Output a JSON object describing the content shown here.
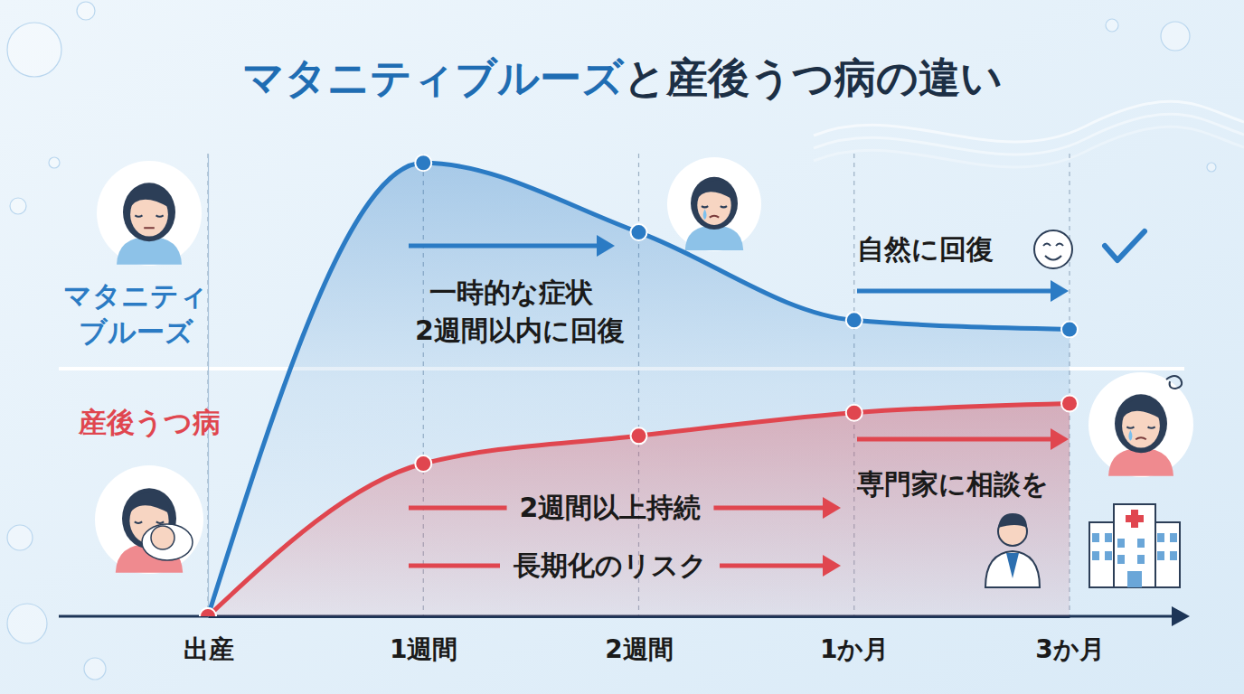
{
  "chart_data": {
    "type": "line",
    "title": "マタニティブルーズと産後うつ病の違い",
    "categories": [
      "出産",
      "1週間",
      "2週間",
      "1か月",
      "3か月"
    ],
    "series": [
      {
        "name": "マタニティブルーズ",
        "color": "#2b7bc4",
        "values": [
          0,
          98,
          83,
          64,
          62
        ],
        "marker": "circle"
      },
      {
        "name": "産後うつ病",
        "color": "#e0464f",
        "values": [
          0,
          33,
          39,
          44,
          46
        ],
        "marker": "circle"
      }
    ],
    "ylim": [
      0,
      100
    ],
    "grid": true,
    "tick_labels": "x",
    "annotations": [
      "一時的な症状",
      "2週間以内に回復",
      "自然に回復",
      "2週間以上持続",
      "長期化のリスク",
      "専門家に相談を"
    ]
  }
}
